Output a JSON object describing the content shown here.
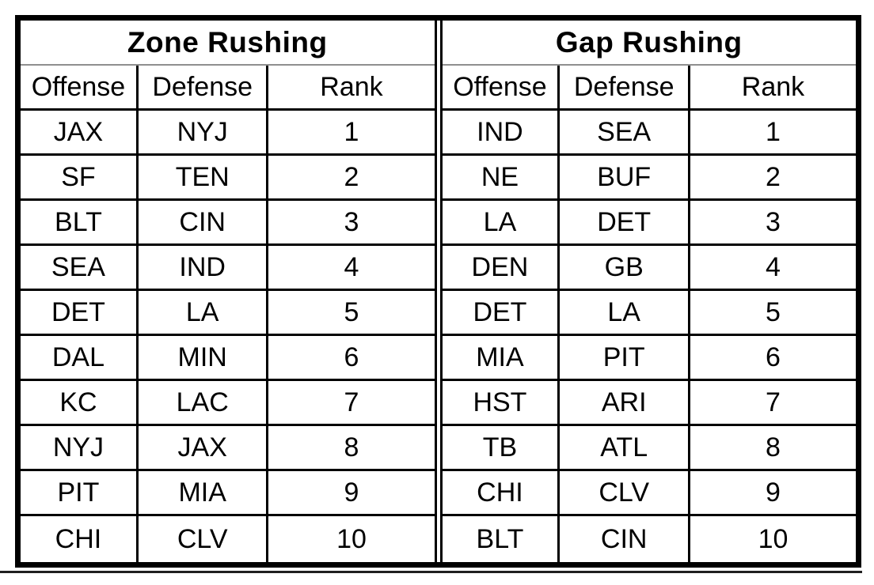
{
  "chart_data": [
    {
      "type": "table",
      "title": "Zone Rushing",
      "columns": [
        "Offense",
        "Defense",
        "Rank"
      ],
      "rows": [
        [
          "JAX",
          "NYJ",
          "1"
        ],
        [
          "SF",
          "TEN",
          "2"
        ],
        [
          "BLT",
          "CIN",
          "3"
        ],
        [
          "SEA",
          "IND",
          "4"
        ],
        [
          "DET",
          "LA",
          "5"
        ],
        [
          "DAL",
          "MIN",
          "6"
        ],
        [
          "KC",
          "LAC",
          "7"
        ],
        [
          "NYJ",
          "JAX",
          "8"
        ],
        [
          "PIT",
          "MIA",
          "9"
        ],
        [
          "CHI",
          "CLV",
          "10"
        ]
      ]
    },
    {
      "type": "table",
      "title": "Gap Rushing",
      "columns": [
        "Offense",
        "Defense",
        "Rank"
      ],
      "rows": [
        [
          "IND",
          "SEA",
          "1"
        ],
        [
          "NE",
          "BUF",
          "2"
        ],
        [
          "LA",
          "DET",
          "3"
        ],
        [
          "DEN",
          "GB",
          "4"
        ],
        [
          "DET",
          "LA",
          "5"
        ],
        [
          "MIA",
          "PIT",
          "6"
        ],
        [
          "HST",
          "ARI",
          "7"
        ],
        [
          "TB",
          "ATL",
          "8"
        ],
        [
          "CHI",
          "CLV",
          "9"
        ],
        [
          "BLT",
          "CIN",
          "10"
        ]
      ]
    }
  ],
  "colors": {
    "border": "#000000",
    "title_separator": "#8f8f8f",
    "background": "#ffffff",
    "text": "#000000"
  }
}
